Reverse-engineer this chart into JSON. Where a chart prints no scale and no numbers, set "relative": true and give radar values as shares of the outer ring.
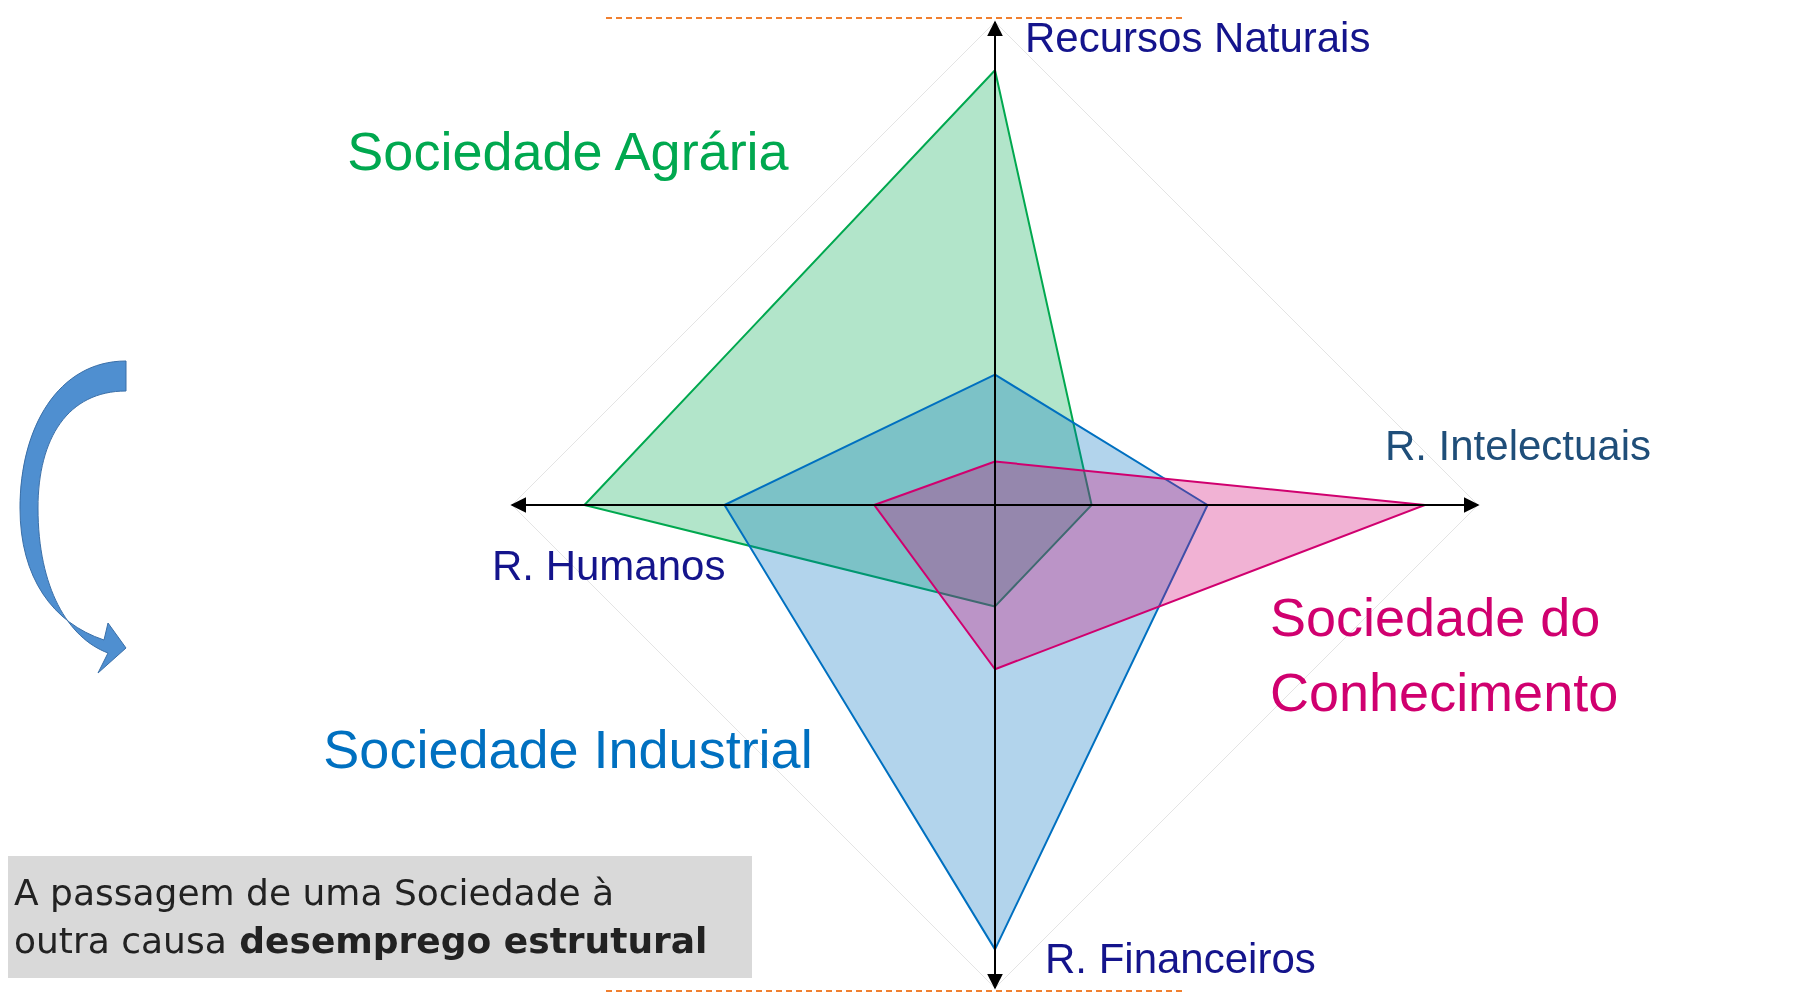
{
  "chart_data": {
    "type": "radar",
    "relative": true,
    "categories": [
      "Recursos Naturais",
      "R. Intelectuais",
      "R. Financeiros",
      "R. Humanos"
    ],
    "series": [
      {
        "name": "Sociedade Agrária",
        "color": "#00a84f",
        "values": [
          0.9,
          0.2,
          0.21,
          0.85
        ]
      },
      {
        "name": "Sociedade Industrial",
        "color": "#0070c0",
        "values": [
          0.27,
          0.44,
          0.92,
          0.56
        ]
      },
      {
        "name": "Sociedade do Conhecimento",
        "color": "#d0006f",
        "values": [
          0.09,
          0.89,
          0.34,
          0.25
        ]
      }
    ],
    "annotations": [
      "A passagem de uma Sociedade à outra causa",
      "desemprego estrutural"
    ]
  }
}
